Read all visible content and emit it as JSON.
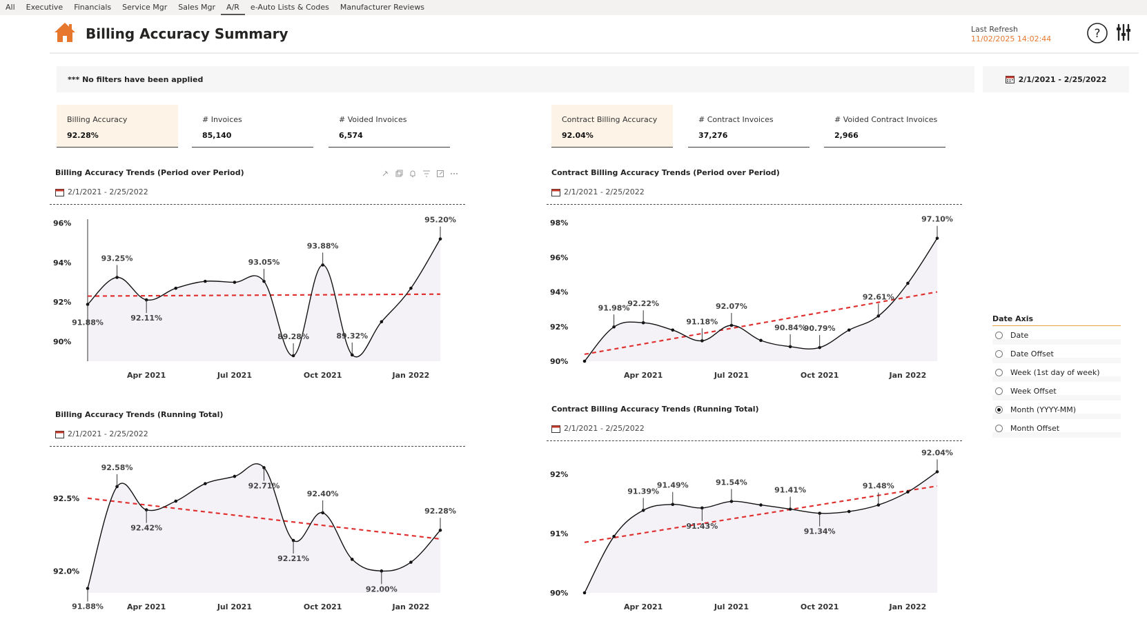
{
  "nav": {
    "tabs": [
      {
        "label": "All"
      },
      {
        "label": "Executive"
      },
      {
        "label": "Financials"
      },
      {
        "label": "Service Mgr"
      },
      {
        "label": "Sales Mgr"
      },
      {
        "label": "A/R"
      },
      {
        "label": "e-Auto Lists & Codes"
      },
      {
        "label": "Manufacturer Reviews"
      }
    ],
    "active_index": 5
  },
  "header": {
    "title": "Billing Accuracy Summary",
    "refresh_label": "Last Refresh",
    "refresh_value": "11/02/2025 14:02:44",
    "accent_color": "#e8772e"
  },
  "filters": {
    "message": "*** No filters have been applied",
    "date_range": "2/1/2021 - 2/25/2022"
  },
  "kpis": [
    {
      "label": "Billing Accuracy",
      "value": "92.28%",
      "highlight": true
    },
    {
      "label": "# Invoices",
      "value": "85,140",
      "highlight": false
    },
    {
      "label": "# Voided Invoices",
      "value": "6,574",
      "highlight": false
    },
    {
      "label": "Contract Billing Accuracy",
      "value": "92.04%",
      "highlight": true
    },
    {
      "label": "# Contract Invoices",
      "value": "37,276",
      "highlight": false
    },
    {
      "label": "# Voided Contract Invoices",
      "value": "2,966",
      "highlight": false
    }
  ],
  "date_axis": {
    "title": "Date Axis",
    "options": [
      "Date",
      "Date Offset",
      "Week (1st day of week)",
      "Week Offset",
      "Month (YYYY-MM)",
      "Month Offset"
    ],
    "selected": "Month (YYYY-MM)"
  },
  "chart_data": [
    {
      "type": "line",
      "title": "Billing Accuracy Trends (Period over Period)",
      "date_range": "2/1/2021 - 2/25/2022",
      "x": [
        "2021-02",
        "2021-03",
        "2021-04",
        "2021-05",
        "2021-06",
        "2021-07",
        "2021-08",
        "2021-09",
        "2021-10",
        "2021-11",
        "2021-12",
        "2022-01",
        "2022-02"
      ],
      "values": [
        91.88,
        93.25,
        92.11,
        92.7,
        93.05,
        93.0,
        93.05,
        89.28,
        93.88,
        89.32,
        91.0,
        92.7,
        95.2
      ],
      "trend": [
        92.3,
        92.4
      ],
      "ylim": [
        89,
        96.2
      ],
      "yticks": [
        90,
        92,
        94,
        96
      ],
      "ytick_labels": [
        "90%",
        "92%",
        "94%",
        "96%"
      ],
      "xticks": [
        {
          "index": 2,
          "label": "Apr 2021"
        },
        {
          "index": 5,
          "label": "Jul 2021"
        },
        {
          "index": 8,
          "label": "Oct 2021"
        },
        {
          "index": 11,
          "label": "Jan 2022"
        }
      ],
      "data_labels": [
        {
          "index": 0,
          "text": "91.88%",
          "pos": "below"
        },
        {
          "index": 1,
          "text": "93.25%",
          "pos": "above"
        },
        {
          "index": 2,
          "text": "92.11%",
          "pos": "below"
        },
        {
          "index": 6,
          "text": "93.05%",
          "pos": "above"
        },
        {
          "index": 7,
          "text": "89.28%",
          "pos": "above"
        },
        {
          "index": 8,
          "text": "93.88%",
          "pos": "above"
        },
        {
          "index": 9,
          "text": "89.32%",
          "pos": "above"
        },
        {
          "index": 12,
          "text": "95.20%",
          "pos": "above"
        }
      ],
      "cursor_index": 0
    },
    {
      "type": "line",
      "title": "Contract Billing Accuracy Trends (Period over Period)",
      "date_range": "2/1/2021 - 2/25/2022",
      "x": [
        "2021-02",
        "2021-03",
        "2021-04",
        "2021-05",
        "2021-06",
        "2021-07",
        "2021-08",
        "2021-09",
        "2021-10",
        "2021-11",
        "2021-12",
        "2022-01",
        "2022-02"
      ],
      "values": [
        90.0,
        91.98,
        92.22,
        91.8,
        91.18,
        92.07,
        91.2,
        90.84,
        90.79,
        91.8,
        92.61,
        94.5,
        97.1
      ],
      "trend": [
        90.4,
        94.0
      ],
      "ylim": [
        90,
        98.2
      ],
      "yticks": [
        90,
        92,
        94,
        96,
        98
      ],
      "ytick_labels": [
        "90%",
        "92%",
        "94%",
        "96%",
        "98%"
      ],
      "xticks": [
        {
          "index": 2,
          "label": "Apr 2021"
        },
        {
          "index": 5,
          "label": "Jul 2021"
        },
        {
          "index": 8,
          "label": "Oct 2021"
        },
        {
          "index": 11,
          "label": "Jan 2022"
        }
      ],
      "data_labels": [
        {
          "index": 1,
          "text": "91.98%",
          "pos": "above"
        },
        {
          "index": 2,
          "text": "92.22%",
          "pos": "above"
        },
        {
          "index": 4,
          "text": "91.18%",
          "pos": "above"
        },
        {
          "index": 5,
          "text": "92.07%",
          "pos": "above"
        },
        {
          "index": 7,
          "text": "90.84%",
          "pos": "above"
        },
        {
          "index": 8,
          "text": "90.79%",
          "pos": "above"
        },
        {
          "index": 10,
          "text": "92.61%",
          "pos": "above"
        },
        {
          "index": 12,
          "text": "97.10%",
          "pos": "above"
        }
      ]
    },
    {
      "type": "line",
      "title": "Billing Accuracy Trends (Running Total)",
      "date_range": "2/1/2021 - 2/25/2022",
      "x": [
        "2021-02",
        "2021-03",
        "2021-04",
        "2021-05",
        "2021-06",
        "2021-07",
        "2021-08",
        "2021-09",
        "2021-10",
        "2021-11",
        "2021-12",
        "2022-01",
        "2022-02"
      ],
      "values": [
        91.88,
        92.58,
        92.42,
        92.48,
        92.6,
        92.65,
        92.71,
        92.21,
        92.4,
        92.08,
        92.0,
        92.06,
        92.28
      ],
      "trend": [
        92.5,
        92.22
      ],
      "ylim": [
        91.85,
        92.75
      ],
      "yticks": [
        92.0,
        92.5
      ],
      "ytick_labels": [
        "92.0%",
        "92.5%"
      ],
      "xticks": [
        {
          "index": 2,
          "label": "Apr 2021"
        },
        {
          "index": 5,
          "label": "Jul 2021"
        },
        {
          "index": 8,
          "label": "Oct 2021"
        },
        {
          "index": 11,
          "label": "Jan 2022"
        }
      ],
      "data_labels": [
        {
          "index": 0,
          "text": "91.88%",
          "pos": "below"
        },
        {
          "index": 1,
          "text": "92.58%",
          "pos": "above"
        },
        {
          "index": 2,
          "text": "92.42%",
          "pos": "below"
        },
        {
          "index": 6,
          "text": "92.71%",
          "pos": "below"
        },
        {
          "index": 7,
          "text": "92.21%",
          "pos": "below"
        },
        {
          "index": 8,
          "text": "92.40%",
          "pos": "above"
        },
        {
          "index": 10,
          "text": "92.00%",
          "pos": "below"
        },
        {
          "index": 12,
          "text": "92.28%",
          "pos": "above"
        }
      ]
    },
    {
      "type": "line",
      "title": "Contract Billing Accuracy Trends (Running Total)",
      "date_range": "2/1/2021 - 2/25/2022",
      "x": [
        "2021-02",
        "2021-03",
        "2021-04",
        "2021-05",
        "2021-06",
        "2021-07",
        "2021-08",
        "2021-09",
        "2021-10",
        "2021-11",
        "2021-12",
        "2022-01",
        "2022-02"
      ],
      "values": [
        90.0,
        90.95,
        91.39,
        91.49,
        91.43,
        91.54,
        91.48,
        91.41,
        91.34,
        91.37,
        91.48,
        91.7,
        92.04
      ],
      "trend": [
        90.85,
        91.8
      ],
      "ylim": [
        90,
        92.3
      ],
      "yticks": [
        90,
        91,
        92
      ],
      "ytick_labels": [
        "90%",
        "91%",
        "92%"
      ],
      "xticks": [
        {
          "index": 2,
          "label": "Apr 2021"
        },
        {
          "index": 5,
          "label": "Jul 2021"
        },
        {
          "index": 8,
          "label": "Oct 2021"
        },
        {
          "index": 11,
          "label": "Jan 2022"
        }
      ],
      "data_labels": [
        {
          "index": 2,
          "text": "91.39%",
          "pos": "above"
        },
        {
          "index": 3,
          "text": "91.49%",
          "pos": "above"
        },
        {
          "index": 4,
          "text": "91.43%",
          "pos": "below"
        },
        {
          "index": 5,
          "text": "91.54%",
          "pos": "above"
        },
        {
          "index": 7,
          "text": "91.41%",
          "pos": "above"
        },
        {
          "index": 8,
          "text": "91.34%",
          "pos": "below"
        },
        {
          "index": 10,
          "text": "91.48%",
          "pos": "above"
        },
        {
          "index": 12,
          "text": "92.04%",
          "pos": "above"
        }
      ]
    }
  ]
}
